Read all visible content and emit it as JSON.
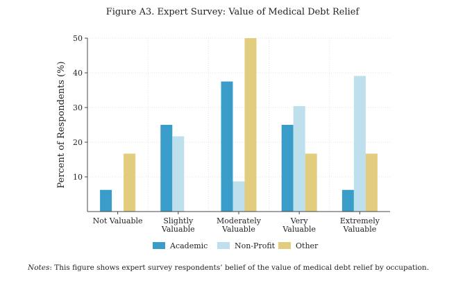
{
  "figure": {
    "title": "Figure A3. Expert Survey: Value of Medical Debt Relief",
    "notes_label": "Notes",
    "notes_text": ": This figure shows expert survey respondents’ belief of the value of medical debt relief by occupation."
  },
  "chart_data": {
    "type": "bar",
    "title": "Figure A3. Expert Survey: Value of Medical Debt Relief",
    "xlabel": "",
    "ylabel": "Percent of Respondents (%)",
    "ylim": [
      0,
      50
    ],
    "yticks": [
      10,
      20,
      30,
      40,
      50
    ],
    "grid": true,
    "legend_position": "bottom",
    "categories": [
      [
        "Not Valuable"
      ],
      [
        "Slightly",
        "Valuable"
      ],
      [
        "Moderately",
        "Valuable"
      ],
      [
        "Very",
        "Valuable"
      ],
      [
        "Extremely",
        "Valuable"
      ]
    ],
    "series": [
      {
        "name": "Academic",
        "color": "#3a9cc9",
        "values": [
          6.25,
          25,
          37.5,
          25,
          6.25
        ]
      },
      {
        "name": "Non-Profit",
        "color": "#bde0ec",
        "values": [
          0,
          21.7,
          8.7,
          30.4,
          39.1
        ]
      },
      {
        "name": "Other",
        "color": "#e1cd7d",
        "values": [
          16.7,
          0,
          50,
          16.7,
          16.7
        ]
      }
    ]
  }
}
